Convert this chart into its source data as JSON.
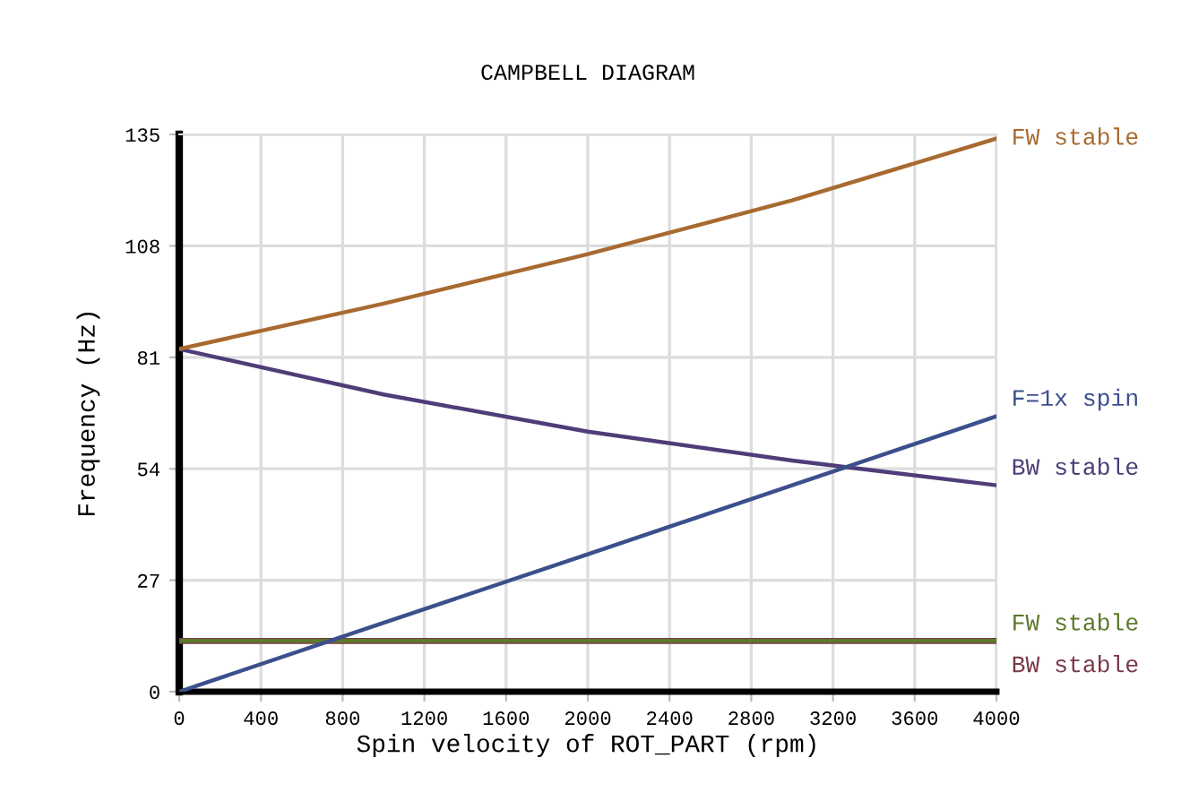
{
  "chart_data": {
    "type": "line",
    "title": "CAMPBELL DIAGRAM",
    "xlabel": "Spin velocity of ROT_PART (rpm)",
    "ylabel": "Frequency (Hz)",
    "x": [
      0,
      1000,
      2000,
      3000,
      4000
    ],
    "series": [
      {
        "name": "FW stable",
        "color": "#a86a30",
        "values": [
          83,
          94,
          106,
          119,
          134
        ]
      },
      {
        "name": "F=1x spin",
        "color": "#3b4f8c",
        "values": [
          0,
          16.7,
          33.3,
          50,
          66.7
        ]
      },
      {
        "name": "BW stable",
        "color": "#4e3d78",
        "values": [
          83,
          72,
          63,
          56,
          50
        ]
      },
      {
        "name": "FW stable",
        "color": "#5c7a2c",
        "values": [
          12.3,
          12.3,
          12.3,
          12.3,
          12.3
        ]
      },
      {
        "name": "BW stable",
        "color": "#7a3848",
        "values": [
          12.3,
          12.3,
          12.3,
          12.3,
          12.3
        ]
      }
    ],
    "xlim": [
      0,
      4000
    ],
    "xticks": [
      0,
      400,
      800,
      1200,
      1600,
      2000,
      2400,
      2800,
      3200,
      3600,
      4000
    ],
    "ylim": [
      0,
      135
    ],
    "yticks": [
      0,
      27,
      54,
      81,
      108,
      135
    ],
    "grid": true,
    "legend": false,
    "marker": "none",
    "line_style": "solid"
  }
}
